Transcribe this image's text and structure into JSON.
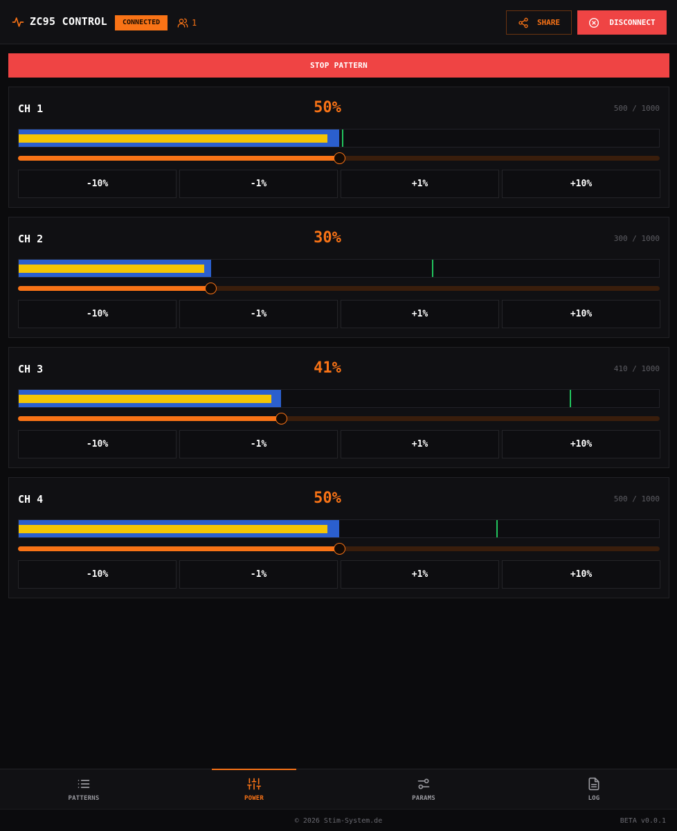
{
  "header": {
    "app_title": "ZC95 CONTROL",
    "status": "CONNECTED",
    "user_count": "1",
    "share_label": "SHARE",
    "disconnect_label": "DISCONNECT"
  },
  "stop_label": "STOP PATTERN",
  "step_labels": [
    "-10%",
    "-1%",
    "+1%",
    "+10%"
  ],
  "channels": [
    {
      "name": "CH 1",
      "percent_text": "50%",
      "raw_text": "500 / 1000",
      "power": 0.5,
      "output_level": 0.5,
      "inner_level": 0.482,
      "limit": 0.505
    },
    {
      "name": "CH 2",
      "percent_text": "30%",
      "raw_text": "300 / 1000",
      "power": 0.3,
      "output_level": 0.3,
      "inner_level": 0.29,
      "limit": 0.645
    },
    {
      "name": "CH 3",
      "percent_text": "41%",
      "raw_text": "410 / 1000",
      "power": 0.41,
      "output_level": 0.41,
      "inner_level": 0.395,
      "limit": 0.86
    },
    {
      "name": "CH 4",
      "percent_text": "50%",
      "raw_text": "500 / 1000",
      "power": 0.5,
      "output_level": 0.5,
      "inner_level": 0.482,
      "limit": 0.746
    }
  ],
  "nav": {
    "tabs": [
      {
        "label": "PATTERNS",
        "icon": "list-icon"
      },
      {
        "label": "POWER",
        "icon": "sliders-vertical-icon",
        "active": true
      },
      {
        "label": "PARAMS",
        "icon": "sliders-horizontal-icon"
      },
      {
        "label": "LOG",
        "icon": "document-icon"
      }
    ]
  },
  "footer": {
    "copyright": "© 2026 Stim-System.de",
    "version": "BETA v0.0.1"
  },
  "colors": {
    "accent": "#f97316",
    "danger": "#ef4444",
    "bar_outer": "#2b5fce",
    "bar_inner": "#f5c504",
    "limit_marker": "#22c55e"
  }
}
